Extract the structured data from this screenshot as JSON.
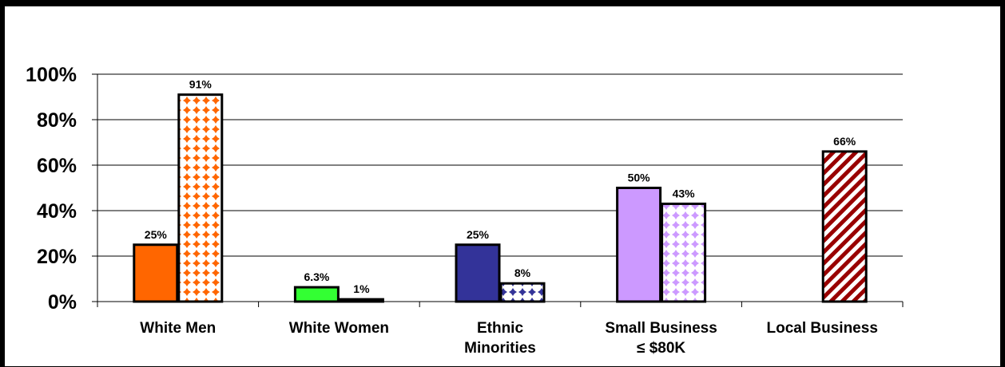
{
  "chart_data": {
    "type": "bar",
    "categories": [
      "White Men",
      "White Women",
      "Ethnic Minorities",
      "Small Business ≤ $80K",
      "Local Business"
    ],
    "category_lines": [
      [
        "White Men"
      ],
      [
        "White Women"
      ],
      [
        "Ethnic",
        "Minorities"
      ],
      [
        "Small Business",
        "≤ $80K"
      ],
      [
        "Local Business"
      ]
    ],
    "y_ticks": [
      "0%",
      "20%",
      "40%",
      "60%",
      "80%",
      "100%"
    ],
    "ylim": [
      0,
      100
    ],
    "grid": true,
    "bars": [
      {
        "category": 0,
        "slot": 0,
        "value": 25,
        "label": "25%",
        "fill": "#ff6600",
        "pattern": "solid"
      },
      {
        "category": 0,
        "slot": 1,
        "value": 91,
        "label": "91%",
        "fill": "#ff6600",
        "pattern": "dots"
      },
      {
        "category": 1,
        "slot": 0,
        "value": 6.3,
        "label": "6.3%",
        "fill": "#33ff33",
        "pattern": "solid"
      },
      {
        "category": 1,
        "slot": 1,
        "value": 1,
        "label": "1%",
        "fill": "#33ff33",
        "pattern": "dots"
      },
      {
        "category": 2,
        "slot": 0,
        "value": 25,
        "label": "25%",
        "fill": "#333399",
        "pattern": "solid"
      },
      {
        "category": 2,
        "slot": 1,
        "value": 8,
        "label": "8%",
        "fill": "#333399",
        "pattern": "dots"
      },
      {
        "category": 3,
        "slot": 0,
        "value": 50,
        "label": "50%",
        "fill": "#cc99ff",
        "pattern": "solid"
      },
      {
        "category": 3,
        "slot": 1,
        "value": 43,
        "label": "43%",
        "fill": "#cc99ff",
        "pattern": "dots"
      },
      {
        "category": 4,
        "slot": 1,
        "value": 66,
        "label": "66%",
        "fill": "#990000",
        "pattern": "stripes"
      }
    ]
  }
}
